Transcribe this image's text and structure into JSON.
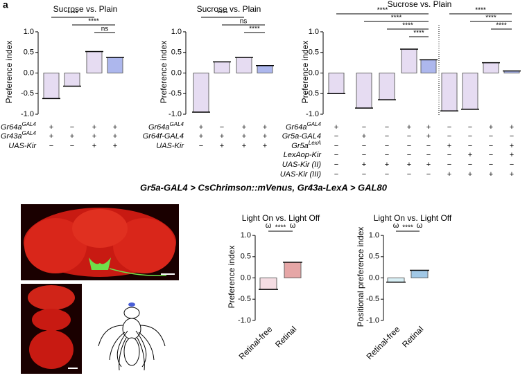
{
  "panel_label": "a",
  "middle_title": "Gr5a-GAL4 > CsChrimson::mVenus, Gr43a-LexA > GAL80",
  "chart_data": [
    {
      "type": "bar",
      "title": "Sucrose vs. Plain",
      "ylabel": "Preference index",
      "categories": [
        null,
        null,
        null,
        null
      ],
      "values": [
        -0.62,
        -0.32,
        0.52,
        0.38
      ],
      "colors": [
        "#c8b2e2",
        "#c8b2e2",
        "#c8b2e2",
        "#4a5fd8"
      ],
      "ylim": [
        -1.05,
        1.1
      ],
      "yticks": [
        {
          "value": 1,
          "label": "1.0"
        },
        {
          "value": 0.5,
          "label": "0.5"
        },
        {
          "value": 0,
          "label": "0.0"
        },
        {
          "value": -0.5,
          "label": "-0.5"
        },
        {
          "value": -1,
          "label": "-1.0"
        }
      ],
      "significance": [
        [
          {
            "between": [
              0,
              2
            ],
            "label": "****"
          },
          {
            "between": [
              1,
              3
            ],
            "label": "****"
          },
          {
            "between": [
              2,
              3
            ],
            "label": "ns"
          }
        ]
      ],
      "genotype_rows": [
        {
          "label": "Gr64a",
          "sup": "GAL4",
          "signs": [
            "+",
            "−",
            "+",
            "+"
          ]
        },
        {
          "label": "Gr43a",
          "sup": "GAL4",
          "signs": [
            "+",
            "+",
            "+",
            "+"
          ]
        },
        {
          "label": "UAS-Kir",
          "signs": [
            "−",
            "−",
            "+",
            "+"
          ]
        }
      ]
    },
    {
      "type": "bar",
      "title": "Sucrose vs. Plain",
      "ylabel": "Preference index",
      "categories": [
        null,
        null,
        null,
        null
      ],
      "values": [
        -0.95,
        0.27,
        0.38,
        0.18
      ],
      "colors": [
        "#c8b2e2",
        "#c8b2e2",
        "#c8b2e2",
        "#4a5fd8"
      ],
      "ylim": [
        -1.05,
        1.1
      ],
      "yticks": [
        {
          "value": 1,
          "label": "1.0"
        },
        {
          "value": 0.5,
          "label": "0.5"
        },
        {
          "value": 0,
          "label": "0.0"
        },
        {
          "value": -0.5,
          "label": "-0.5"
        },
        {
          "value": -1,
          "label": "-1.0"
        }
      ],
      "significance": [
        [
          {
            "between": [
              0,
              2
            ],
            "label": "****"
          },
          {
            "between": [
              1,
              3
            ],
            "label": "ns"
          },
          {
            "between": [
              2,
              3
            ],
            "label": "****"
          }
        ]
      ],
      "genotype_rows": [
        {
          "label": "Gr64a",
          "sup": "GAL4",
          "signs": [
            "+",
            "−",
            "+",
            "+"
          ]
        },
        {
          "label": "Gr64f-GAL4",
          "signs": [
            "+",
            "+",
            "+",
            "+"
          ]
        },
        {
          "label": "UAS-Kir",
          "signs": [
            "−",
            "+",
            "+",
            "+"
          ]
        }
      ]
    },
    {
      "type": "bar",
      "title": "Sucrose vs. Plain",
      "ylabel": "Preference index",
      "categories": [
        null,
        null,
        null,
        null,
        null,
        null,
        null,
        null,
        null
      ],
      "values": [
        -0.5,
        -0.85,
        -0.65,
        0.58,
        0.32,
        -0.92,
        -0.88,
        0.25,
        0.05
      ],
      "colors": [
        "#c8b2e2",
        "#c8b2e2",
        "#c8b2e2",
        "#c8b2e2",
        "#4a5fd8",
        "#c8b2e2",
        "#c8b2e2",
        "#c8b2e2",
        "#4a5fd8"
      ],
      "ylim": [
        -1.05,
        1.1
      ],
      "yticks": [
        {
          "value": 1,
          "label": "1.0"
        },
        {
          "value": 0.5,
          "label": "0.5"
        },
        {
          "value": 0,
          "label": "0.0"
        },
        {
          "value": -0.5,
          "label": "-0.5"
        },
        {
          "value": -1,
          "label": "-1.0"
        }
      ],
      "significance": [
        [
          {
            "between": [
              0,
              4
            ],
            "label": "****"
          },
          {
            "between": [
              1,
              4
            ],
            "label": "****"
          },
          {
            "between": [
              2,
              4
            ],
            "label": "****"
          },
          {
            "between": [
              3,
              4
            ],
            "label": "****"
          }
        ],
        [
          {
            "between": [
              5,
              8
            ],
            "label": "****"
          },
          {
            "between": [
              6,
              8
            ],
            "label": "****"
          },
          {
            "between": [
              7,
              8
            ],
            "label": "****"
          }
        ]
      ],
      "genotype_rows": [
        {
          "label": "Gr64a",
          "sup": "GAL4",
          "signs": [
            "+",
            "−",
            "−",
            "+",
            "+",
            "−",
            "−",
            "+",
            "+"
          ]
        },
        {
          "label": "Gr5a-GAL4",
          "signs": [
            "−",
            "+",
            "−",
            "−",
            "+",
            "−",
            "−",
            "−",
            "−"
          ]
        },
        {
          "label": "Gr5a",
          "sup": "LexA",
          "signs": [
            "−",
            "−",
            "−",
            "−",
            "−",
            "+",
            "−",
            "−",
            "+"
          ]
        },
        {
          "label": "LexAop-Kir",
          "signs": [
            "−",
            "−",
            "−",
            "−",
            "−",
            "−",
            "+",
            "−",
            "+"
          ]
        },
        {
          "label": "UAS-Kir (II)",
          "signs": [
            "−",
            "+",
            "+",
            "+",
            "+",
            "−",
            "−",
            "−",
            "−"
          ]
        },
        {
          "label": "UAS-Kir (III)",
          "signs": [
            "−",
            "−",
            "−",
            "−",
            "−",
            "+",
            "+",
            "+",
            "+"
          ]
        }
      ]
    },
    {
      "type": "bar",
      "title": "Light On vs. Light Off",
      "ylabel": "Preference index",
      "categories": [
        "Retinal-free",
        "Retinal"
      ],
      "values": [
        -0.27,
        0.37
      ],
      "colors": [
        "#e8b4c0",
        "#c83a3a"
      ],
      "ylim": [
        -1.05,
        1.1
      ],
      "yticks": [
        {
          "value": 1,
          "label": "1.0"
        },
        {
          "value": 0.5,
          "label": "0.5"
        },
        {
          "value": 0,
          "label": "0.0"
        },
        {
          "value": -0.5,
          "label": "-0.5"
        },
        {
          "value": -1,
          "label": "-1.0"
        }
      ],
      "annotations": [
        "ω",
        "ω"
      ],
      "significance": [
        [
          {
            "between": [
              0,
              1
            ],
            "label": "****"
          }
        ]
      ]
    },
    {
      "type": "bar",
      "title": "Light On vs. Light Off",
      "ylabel": "Positional preference index",
      "categories": [
        "Retinal-free",
        "Retinal"
      ],
      "values": [
        -0.1,
        0.18
      ],
      "colors": [
        "#a8dbe8",
        "#2f86c8"
      ],
      "ylim": [
        -1.05,
        1.1
      ],
      "yticks": [
        {
          "value": 1,
          "label": "1.0"
        },
        {
          "value": 0.5,
          "label": "0.5"
        },
        {
          "value": 0,
          "label": "0.0"
        },
        {
          "value": -0.5,
          "label": "-0.5"
        },
        {
          "value": -1,
          "label": "-1.0"
        }
      ],
      "annotations": [
        "ω",
        "ω"
      ],
      "significance": [
        [
          {
            "between": [
              0,
              1
            ],
            "label": "****"
          }
        ]
      ]
    }
  ]
}
